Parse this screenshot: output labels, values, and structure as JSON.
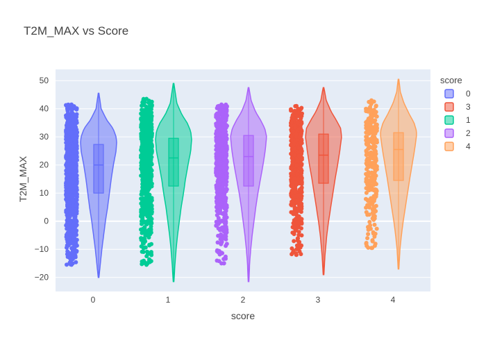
{
  "chart_data": {
    "type": "violin",
    "title": "T2M_MAX vs Score",
    "xlabel": "score",
    "ylabel": "T2M_MAX",
    "categories": [
      "0",
      "1",
      "2",
      "3",
      "4"
    ],
    "ylim": [
      -25,
      54
    ],
    "yticks": [
      -20,
      -10,
      0,
      10,
      20,
      30,
      40,
      50
    ],
    "grid": true,
    "plot_background": "#e5ecf6",
    "legend": {
      "title": "score",
      "placement": "top-right",
      "entries": [
        "0",
        "3",
        "1",
        "2",
        "4"
      ]
    },
    "series": [
      {
        "name": "0",
        "category": "0",
        "color": "#636efa",
        "box": {
          "q1": 10,
          "median": 20,
          "q3": 27.3
        },
        "points_range": [
          -15.5,
          41.5
        ],
        "points_density": 1.0,
        "violin": {
          "min": -20,
          "max": 45.5,
          "peak": 28.5,
          "profile": [
            [
              -20,
              0.02
            ],
            [
              -15,
              0.1
            ],
            [
              -10,
              0.18
            ],
            [
              -5,
              0.28
            ],
            [
              0,
              0.38
            ],
            [
              5,
              0.5
            ],
            [
              10,
              0.6
            ],
            [
              15,
              0.7
            ],
            [
              20,
              0.82
            ],
            [
              25,
              0.97
            ],
            [
              28,
              1.0
            ],
            [
              30,
              0.97
            ],
            [
              33,
              0.8
            ],
            [
              36,
              0.45
            ],
            [
              40,
              0.14
            ],
            [
              45.5,
              0.02
            ]
          ]
        }
      },
      {
        "name": "1",
        "category": "1",
        "color": "#00cc96",
        "box": {
          "q1": 12.5,
          "median": 22.5,
          "q3": 29.5
        },
        "points_range": [
          -15.5,
          43.5
        ],
        "points_density": 0.75,
        "violin": {
          "min": -21.5,
          "max": 49,
          "peak": 30,
          "profile": [
            [
              -21.5,
              0.02
            ],
            [
              -15,
              0.08
            ],
            [
              -10,
              0.14
            ],
            [
              -5,
              0.22
            ],
            [
              0,
              0.32
            ],
            [
              5,
              0.42
            ],
            [
              10,
              0.55
            ],
            [
              15,
              0.66
            ],
            [
              20,
              0.8
            ],
            [
              25,
              0.95
            ],
            [
              29,
              1.0
            ],
            [
              32,
              0.95
            ],
            [
              35,
              0.75
            ],
            [
              38,
              0.45
            ],
            [
              42,
              0.18
            ],
            [
              49,
              0.02
            ]
          ]
        }
      },
      {
        "name": "2",
        "category": "2",
        "color": "#ab63fa",
        "box": {
          "q1": 12.5,
          "median": 23,
          "q3": 30.5
        },
        "points_range": [
          -15,
          41.5
        ],
        "points_density": 0.7,
        "violin": {
          "min": -21.5,
          "max": 47.5,
          "peak": 31,
          "profile": [
            [
              -21.5,
              0.02
            ],
            [
              -15,
              0.06
            ],
            [
              -10,
              0.12
            ],
            [
              -5,
              0.2
            ],
            [
              0,
              0.3
            ],
            [
              5,
              0.4
            ],
            [
              10,
              0.52
            ],
            [
              15,
              0.66
            ],
            [
              20,
              0.8
            ],
            [
              25,
              0.92
            ],
            [
              30,
              1.0
            ],
            [
              33,
              0.9
            ],
            [
              36,
              0.66
            ],
            [
              39,
              0.38
            ],
            [
              43,
              0.14
            ],
            [
              47.5,
              0.02
            ]
          ]
        }
      },
      {
        "name": "3",
        "category": "3",
        "color": "#ef553b",
        "box": {
          "q1": 13.5,
          "median": 23.5,
          "q3": 31
        },
        "points_range": [
          -12,
          41
        ],
        "points_density": 0.6,
        "violin": {
          "min": -19,
          "max": 47.5,
          "peak": 31,
          "profile": [
            [
              -19,
              0.02
            ],
            [
              -12,
              0.08
            ],
            [
              -5,
              0.18
            ],
            [
              0,
              0.28
            ],
            [
              5,
              0.4
            ],
            [
              10,
              0.52
            ],
            [
              15,
              0.64
            ],
            [
              20,
              0.78
            ],
            [
              25,
              0.9
            ],
            [
              30,
              1.0
            ],
            [
              33,
              0.95
            ],
            [
              36,
              0.7
            ],
            [
              39,
              0.42
            ],
            [
              43,
              0.15
            ],
            [
              47.5,
              0.02
            ]
          ]
        }
      },
      {
        "name": "4",
        "category": "4",
        "color": "#ffa15a",
        "box": {
          "q1": 14.5,
          "median": 25.5,
          "q3": 31.5
        },
        "points_range": [
          -9.5,
          43
        ],
        "points_density": 0.35,
        "violin": {
          "min": -17,
          "max": 50.5,
          "peak": 32,
          "profile": [
            [
              -17,
              0.02
            ],
            [
              -10,
              0.08
            ],
            [
              -5,
              0.16
            ],
            [
              0,
              0.26
            ],
            [
              5,
              0.38
            ],
            [
              10,
              0.5
            ],
            [
              15,
              0.62
            ],
            [
              20,
              0.75
            ],
            [
              25,
              0.88
            ],
            [
              30,
              0.99
            ],
            [
              32,
              1.0
            ],
            [
              35,
              0.86
            ],
            [
              38,
              0.6
            ],
            [
              42,
              0.3
            ],
            [
              46,
              0.1
            ],
            [
              50.5,
              0.02
            ]
          ]
        }
      }
    ]
  }
}
